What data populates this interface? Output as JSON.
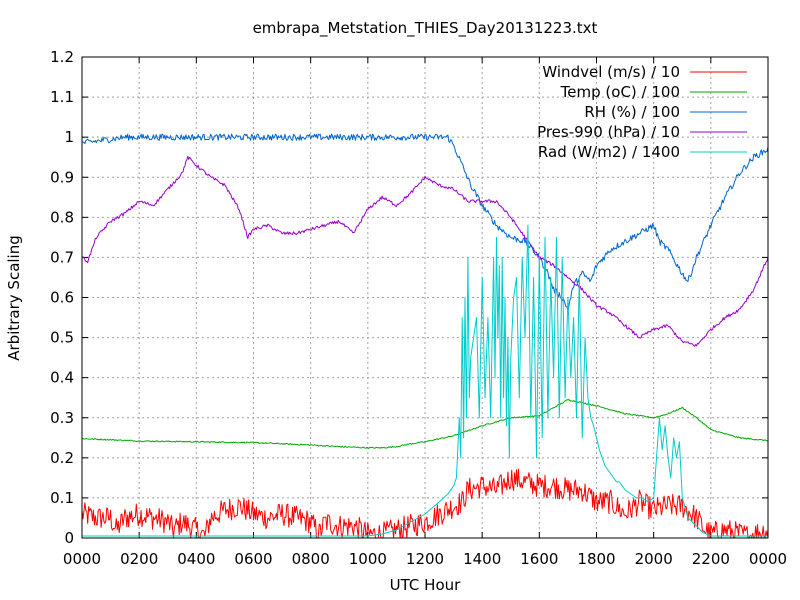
{
  "chart_data": {
    "type": "line",
    "title": "embrapa_Metstation_THIES_Day20131223.txt",
    "xlabel": "UTC Hour",
    "ylabel": "Arbitrary Scaling",
    "xlim": [
      0,
      24
    ],
    "ylim": [
      0,
      1.2
    ],
    "x_ticks": [
      0,
      2,
      4,
      6,
      8,
      10,
      12,
      14,
      16,
      18,
      20,
      22,
      24
    ],
    "x_tick_labels": [
      "0000",
      "0200",
      "0400",
      "0600",
      "0800",
      "1000",
      "1200",
      "1400",
      "1600",
      "1800",
      "2000",
      "2200",
      "0000"
    ],
    "y_ticks": [
      0,
      0.1,
      0.2,
      0.3,
      0.4,
      0.5,
      0.6,
      0.7,
      0.8,
      0.9,
      1,
      1.1,
      1.2
    ],
    "y_tick_labels": [
      "0",
      "0.1",
      "0.2",
      "0.3",
      "0.4",
      "0.5",
      "0.6",
      "0.7",
      "0.8",
      "0.9",
      "1",
      "1.1",
      "1.2"
    ],
    "grid": true,
    "legend_position": "top-right",
    "series": [
      {
        "name": "Windvel (m/s) / 10",
        "color": "#ff0000",
        "noise": 0.03,
        "x": [
          0,
          0.5,
          1,
          1.2,
          1.5,
          2,
          2.5,
          3,
          3.2,
          3.5,
          4,
          4.3,
          4.5,
          5,
          5.5,
          6,
          6.5,
          7,
          7.5,
          8,
          8.3,
          8.5,
          9,
          9.5,
          10,
          10.5,
          11,
          11.5,
          12,
          12.5,
          13,
          13.3,
          13.5,
          14,
          14.5,
          15,
          15.5,
          16,
          16.5,
          17,
          17.5,
          18,
          18.5,
          19,
          19.5,
          20,
          20.5,
          21,
          21.5,
          21.8,
          22,
          22.5,
          23,
          23.3,
          23.5,
          24
        ],
        "y": [
          0.06,
          0.05,
          0.05,
          0.02,
          0.05,
          0.06,
          0.05,
          0.04,
          0.02,
          0.04,
          0.02,
          0.005,
          0.05,
          0.07,
          0.08,
          0.06,
          0.05,
          0.06,
          0.05,
          0.04,
          0.01,
          0.04,
          0.03,
          0.03,
          0.01,
          0.01,
          0.02,
          0.03,
          0.04,
          0.06,
          0.08,
          0.09,
          0.12,
          0.13,
          0.12,
          0.15,
          0.14,
          0.13,
          0.13,
          0.12,
          0.12,
          0.09,
          0.09,
          0.06,
          0.09,
          0.07,
          0.08,
          0.08,
          0.05,
          0.02,
          0.01,
          0.02,
          0.01,
          0.005,
          0.01,
          0.02
        ]
      },
      {
        "name": "Temp (oC) / 100",
        "color": "#00aa00",
        "noise": 0.0015,
        "x": [
          0,
          2,
          4,
          6,
          8,
          9,
          10,
          10.5,
          11,
          11.5,
          12,
          13,
          14,
          15,
          16,
          16.5,
          17,
          18,
          19,
          20,
          20.5,
          21,
          21.5,
          22,
          23,
          24
        ],
        "y": [
          0.248,
          0.242,
          0.24,
          0.238,
          0.232,
          0.228,
          0.225,
          0.225,
          0.228,
          0.235,
          0.24,
          0.255,
          0.28,
          0.3,
          0.305,
          0.325,
          0.345,
          0.33,
          0.31,
          0.3,
          0.31,
          0.325,
          0.3,
          0.27,
          0.25,
          0.243
        ]
      },
      {
        "name": "RH (%) / 100",
        "color": "#0066cc",
        "noise": 0.008,
        "x": [
          0,
          0.5,
          1,
          1.5,
          2,
          4,
          6,
          8,
          10,
          12,
          12.8,
          13,
          13.3,
          13.6,
          14,
          14.5,
          15,
          15.5,
          16,
          16.3,
          16.5,
          16.8,
          17,
          17.2,
          17.5,
          17.8,
          18,
          18.5,
          19,
          19.5,
          20,
          20.2,
          20.5,
          21,
          21.2,
          21.5,
          22,
          22.5,
          23,
          23.5,
          24
        ],
        "y": [
          0.985,
          0.99,
          0.995,
          1,
          1,
          1,
          1,
          1,
          1,
          1,
          1,
          0.98,
          0.93,
          0.88,
          0.83,
          0.78,
          0.75,
          0.74,
          0.7,
          0.66,
          0.62,
          0.6,
          0.57,
          0.63,
          0.66,
          0.64,
          0.68,
          0.72,
          0.74,
          0.76,
          0.78,
          0.74,
          0.72,
          0.66,
          0.64,
          0.7,
          0.78,
          0.85,
          0.91,
          0.95,
          0.97
        ]
      },
      {
        "name": "Pres-990 (hPa) / 10",
        "color": "#9900cc",
        "noise": 0.004,
        "x": [
          0,
          0.2,
          0.5,
          1,
          1.5,
          2,
          2.5,
          3,
          3.5,
          3.7,
          4,
          4.5,
          5,
          5.5,
          5.8,
          6,
          6.5,
          7,
          7.5,
          8,
          8.5,
          9,
          9.5,
          10,
          10.5,
          11,
          11.5,
          12,
          12.5,
          13,
          13.5,
          14,
          14.5,
          15,
          15.5,
          16,
          16.5,
          17,
          17.5,
          18,
          18.5,
          19,
          19.5,
          20,
          20.5,
          21,
          21.5,
          22,
          22.5,
          23,
          23.5,
          24
        ],
        "y": [
          0.7,
          0.69,
          0.75,
          0.79,
          0.81,
          0.84,
          0.83,
          0.87,
          0.91,
          0.95,
          0.93,
          0.9,
          0.88,
          0.82,
          0.75,
          0.77,
          0.78,
          0.76,
          0.76,
          0.77,
          0.78,
          0.79,
          0.76,
          0.82,
          0.85,
          0.83,
          0.86,
          0.9,
          0.88,
          0.87,
          0.84,
          0.84,
          0.84,
          0.8,
          0.75,
          0.7,
          0.68,
          0.65,
          0.62,
          0.58,
          0.56,
          0.53,
          0.5,
          0.52,
          0.53,
          0.49,
          0.48,
          0.52,
          0.55,
          0.57,
          0.62,
          0.7
        ]
      },
      {
        "name": "Rad (W/m2) / 1400",
        "color": "#00cccc",
        "noise": 0,
        "x": [
          0,
          10,
          10.5,
          11,
          11.5,
          12,
          12.5,
          12.8,
          13,
          13.1,
          13.2,
          13.25,
          13.3,
          13.35,
          13.4,
          13.45,
          13.5,
          13.55,
          13.6,
          13.7,
          13.8,
          13.9,
          14,
          14.1,
          14.2,
          14.3,
          14.4,
          14.45,
          14.5,
          14.55,
          14.6,
          14.65,
          14.7,
          14.75,
          14.8,
          14.85,
          14.9,
          14.95,
          15,
          15.1,
          15.2,
          15.3,
          15.4,
          15.5,
          15.6,
          15.7,
          15.8,
          15.9,
          16,
          16.1,
          16.2,
          16.3,
          16.4,
          16.5,
          16.6,
          16.7,
          16.8,
          16.9,
          17,
          17.1,
          17.2,
          17.3,
          17.4,
          17.5,
          17.6,
          17.7,
          17.8,
          17.9,
          18,
          18.1,
          18.2,
          18.3,
          18.4,
          18.5,
          18.6,
          18.7,
          18.8,
          18.9,
          19,
          19.2,
          19.4,
          19.6,
          19.8,
          20,
          20.1,
          20.2,
          20.3,
          20.4,
          20.5,
          20.6,
          20.7,
          20.8,
          20.9,
          21,
          21.2,
          21.5,
          21.7,
          22,
          23,
          24
        ],
        "y": [
          0.005,
          0.005,
          0.01,
          0.02,
          0.04,
          0.06,
          0.09,
          0.11,
          0.13,
          0.15,
          0.3,
          0.2,
          0.55,
          0.25,
          0.6,
          0.3,
          0.7,
          0.35,
          0.45,
          0.5,
          0.55,
          0.3,
          0.65,
          0.35,
          0.55,
          0.3,
          0.7,
          0.4,
          0.75,
          0.5,
          0.68,
          0.3,
          0.7,
          0.35,
          0.6,
          0.28,
          0.5,
          0.2,
          0.45,
          0.6,
          0.65,
          0.35,
          0.7,
          0.5,
          0.78,
          0.3,
          0.65,
          0.2,
          0.7,
          0.25,
          0.75,
          0.3,
          0.65,
          0.4,
          0.75,
          0.3,
          0.7,
          0.35,
          0.6,
          0.4,
          0.55,
          0.3,
          0.65,
          0.25,
          0.5,
          0.35,
          0.3,
          0.28,
          0.25,
          0.22,
          0.2,
          0.18,
          0.17,
          0.16,
          0.15,
          0.14,
          0.14,
          0.13,
          0.12,
          0.11,
          0.1,
          0.1,
          0.09,
          0.1,
          0.2,
          0.3,
          0.22,
          0.28,
          0.2,
          0.15,
          0.25,
          0.2,
          0.24,
          0.1,
          0.05,
          0.03,
          0.015,
          0.005,
          0.005,
          0.005
        ]
      }
    ]
  }
}
